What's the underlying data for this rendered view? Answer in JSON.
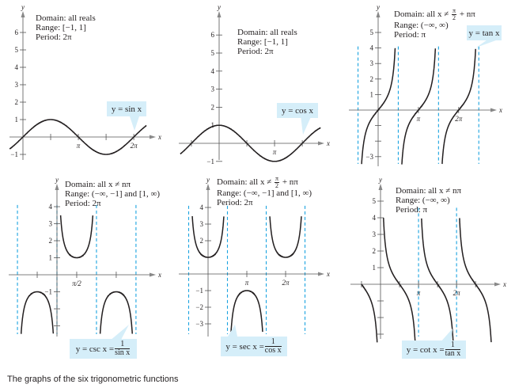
{
  "caption": "The graphs of the six trigonometric functions",
  "colors": {
    "curve": "#231f20",
    "asymptote": "#1aa3e0",
    "callout_bg": "#d5eef9",
    "axis": "#555555"
  },
  "chart_data": [
    {
      "type": "line",
      "function": "sin",
      "xlabel": "x",
      "ylabel": "y",
      "xlim": [
        -0.75,
        7.0
      ],
      "ylim": [
        -1.5,
        6.8
      ],
      "labels": {
        "domain": "Domain:  all reals",
        "range": "Range:  [−1, 1]",
        "period": "Period:  2π"
      },
      "callout": {
        "text": "y = sin x"
      },
      "asymptotes": [],
      "x_ticks": [
        {
          "value": 1.5708,
          "label": ""
        },
        {
          "value": 3.1416,
          "label": "π"
        },
        {
          "value": 4.7124,
          "label": ""
        },
        {
          "value": 6.2832,
          "label": "2π"
        }
      ],
      "y_ticks": [
        {
          "value": 6,
          "label": "6"
        },
        {
          "value": 5,
          "label": "5"
        },
        {
          "value": 4,
          "label": "4"
        },
        {
          "value": 3,
          "label": "3"
        },
        {
          "value": 2,
          "label": "2"
        },
        {
          "value": 1,
          "label": "1"
        },
        {
          "value": -1,
          "label": "−1"
        }
      ]
    },
    {
      "type": "line",
      "function": "cos",
      "xlabel": "x",
      "ylabel": "y",
      "xlim": [
        -2.2,
        5.75
      ],
      "ylim": [
        -1.5,
        6.8
      ],
      "labels": {
        "domain": "Domain:  all reals",
        "range": "Range:  [−1, 1]",
        "period": "Period:  2π"
      },
      "callout": {
        "text": "y = cos x"
      },
      "asymptotes": [],
      "x_ticks": [
        {
          "value": -1.5708,
          "label": ""
        },
        {
          "value": 1.5708,
          "label": ""
        },
        {
          "value": 3.1416,
          "label": "π"
        },
        {
          "value": 4.7124,
          "label": ""
        }
      ],
      "y_ticks": [
        {
          "value": 6,
          "label": "6"
        },
        {
          "value": 5,
          "label": "5"
        },
        {
          "value": 4,
          "label": "4"
        },
        {
          "value": 3,
          "label": "3"
        },
        {
          "value": 2,
          "label": "2"
        },
        {
          "value": 1,
          "label": "1"
        },
        {
          "value": -1,
          "label": "−1"
        }
      ]
    },
    {
      "type": "line",
      "function": "tan",
      "xlabel": "x",
      "ylabel": "y",
      "xlim": [
        -1.5708,
        7.854
      ],
      "ylim": [
        -3.5,
        4
      ],
      "labels": {
        "domain": {
          "label": "Domain:  all x ≠",
          "num": "π",
          "den": "2",
          "after": "+ nπ"
        },
        "range": "Range:  (−∞, ∞)",
        "period": "Period: π"
      },
      "callout": {
        "text": "y = tan x"
      },
      "asymptotes": [
        -1.5708,
        1.5708,
        4.7124,
        7.854
      ],
      "x_ticks": [
        {
          "value": 3.1416,
          "label": "π"
        },
        {
          "value": 6.2832,
          "label": "2π"
        }
      ],
      "y_ticks": [
        {
          "value": 5,
          "label": "5"
        },
        {
          "value": 4,
          "label": "4"
        },
        {
          "value": 3,
          "label": "3"
        },
        {
          "value": 2,
          "label": "2"
        },
        {
          "value": 1,
          "label": "1"
        },
        {
          "value": -1,
          "label": ""
        },
        {
          "value": -2,
          "label": ""
        },
        {
          "value": -3,
          "label": "−3"
        }
      ]
    },
    {
      "type": "line",
      "function": "csc",
      "xlabel": "x",
      "ylabel": "y",
      "xlim": [
        -3.1416,
        6.2832
      ],
      "ylim": [
        -3.5,
        3.5
      ],
      "labels": {
        "domain": "Domain:  all x ≠ nπ",
        "range": "Range:  (−∞, −1] and [1, ∞)",
        "period": "Period:  2π"
      },
      "callout": {
        "text": "y = csc x =",
        "num": "1",
        "den": "sin x"
      },
      "asymptotes": [
        -3.1416,
        0,
        3.1416,
        6.2832
      ],
      "x_ticks": [
        {
          "value": -1.5708,
          "label": ""
        },
        {
          "value": 1.5708,
          "label": "π/2"
        },
        {
          "value": 4.7124,
          "label": ""
        }
      ],
      "y_ticks": [
        {
          "value": 4,
          "label": "4"
        },
        {
          "value": 3,
          "label": "3"
        },
        {
          "value": 2,
          "label": "2"
        },
        {
          "value": 1,
          "label": "1"
        },
        {
          "value": -1,
          "label": "−1"
        },
        {
          "value": -2,
          "label": ""
        },
        {
          "value": -3,
          "label": ""
        }
      ]
    },
    {
      "type": "line",
      "function": "sec",
      "xlabel": "x",
      "ylabel": "y",
      "xlim": [
        -1.5708,
        7.854
      ],
      "ylim": [
        -3.5,
        3.5
      ],
      "labels": {
        "domain": {
          "label": "Domain:  all x ≠",
          "num": "π",
          "den": "2",
          "after": "+ nπ"
        },
        "range": "Range:  (−∞, −1] and [1, ∞)",
        "period": "Period:  2π"
      },
      "callout": {
        "text": "y = sec x =",
        "num": "1",
        "den": "cos x"
      },
      "asymptotes": [
        -1.5708,
        1.5708,
        4.7124,
        7.854
      ],
      "x_ticks": [
        {
          "value": 3.1416,
          "label": "π"
        },
        {
          "value": 6.2832,
          "label": "2π"
        }
      ],
      "y_ticks": [
        {
          "value": 4,
          "label": "4"
        },
        {
          "value": 3,
          "label": "3"
        },
        {
          "value": 2,
          "label": "2"
        },
        {
          "value": 1,
          "label": ""
        },
        {
          "value": -1,
          "label": "−1"
        },
        {
          "value": -2,
          "label": "−2"
        },
        {
          "value": -3,
          "label": "−3"
        }
      ]
    },
    {
      "type": "line",
      "function": "cot",
      "xlabel": "x",
      "ylabel": "y",
      "xlim": [
        -1.5708,
        9.4248
      ],
      "ylim": [
        -3.5,
        4
      ],
      "labels": {
        "domain": "Domain:  all x ≠ nπ",
        "range": "Range:  (−∞, ∞)",
        "period": "Period: π"
      },
      "callout": {
        "text": "y = cot x =",
        "num": "1",
        "den": "tan x"
      },
      "asymptotes": [
        3.1416,
        6.2832
      ],
      "x_ticks": [
        {
          "value": -1.5708,
          "label": ""
        },
        {
          "value": 1.5708,
          "label": ""
        },
        {
          "value": 3.1416,
          "label": "π"
        },
        {
          "value": 4.7124,
          "label": ""
        },
        {
          "value": 6.2832,
          "label": "2π"
        },
        {
          "value": 7.854,
          "label": ""
        }
      ],
      "y_ticks": [
        {
          "value": 5,
          "label": "5"
        },
        {
          "value": 4,
          "label": "4"
        },
        {
          "value": 3,
          "label": "3"
        },
        {
          "value": 2,
          "label": "2"
        },
        {
          "value": 1,
          "label": "1"
        },
        {
          "value": -1,
          "label": ""
        },
        {
          "value": -2,
          "label": ""
        },
        {
          "value": -3,
          "label": ""
        }
      ]
    }
  ]
}
